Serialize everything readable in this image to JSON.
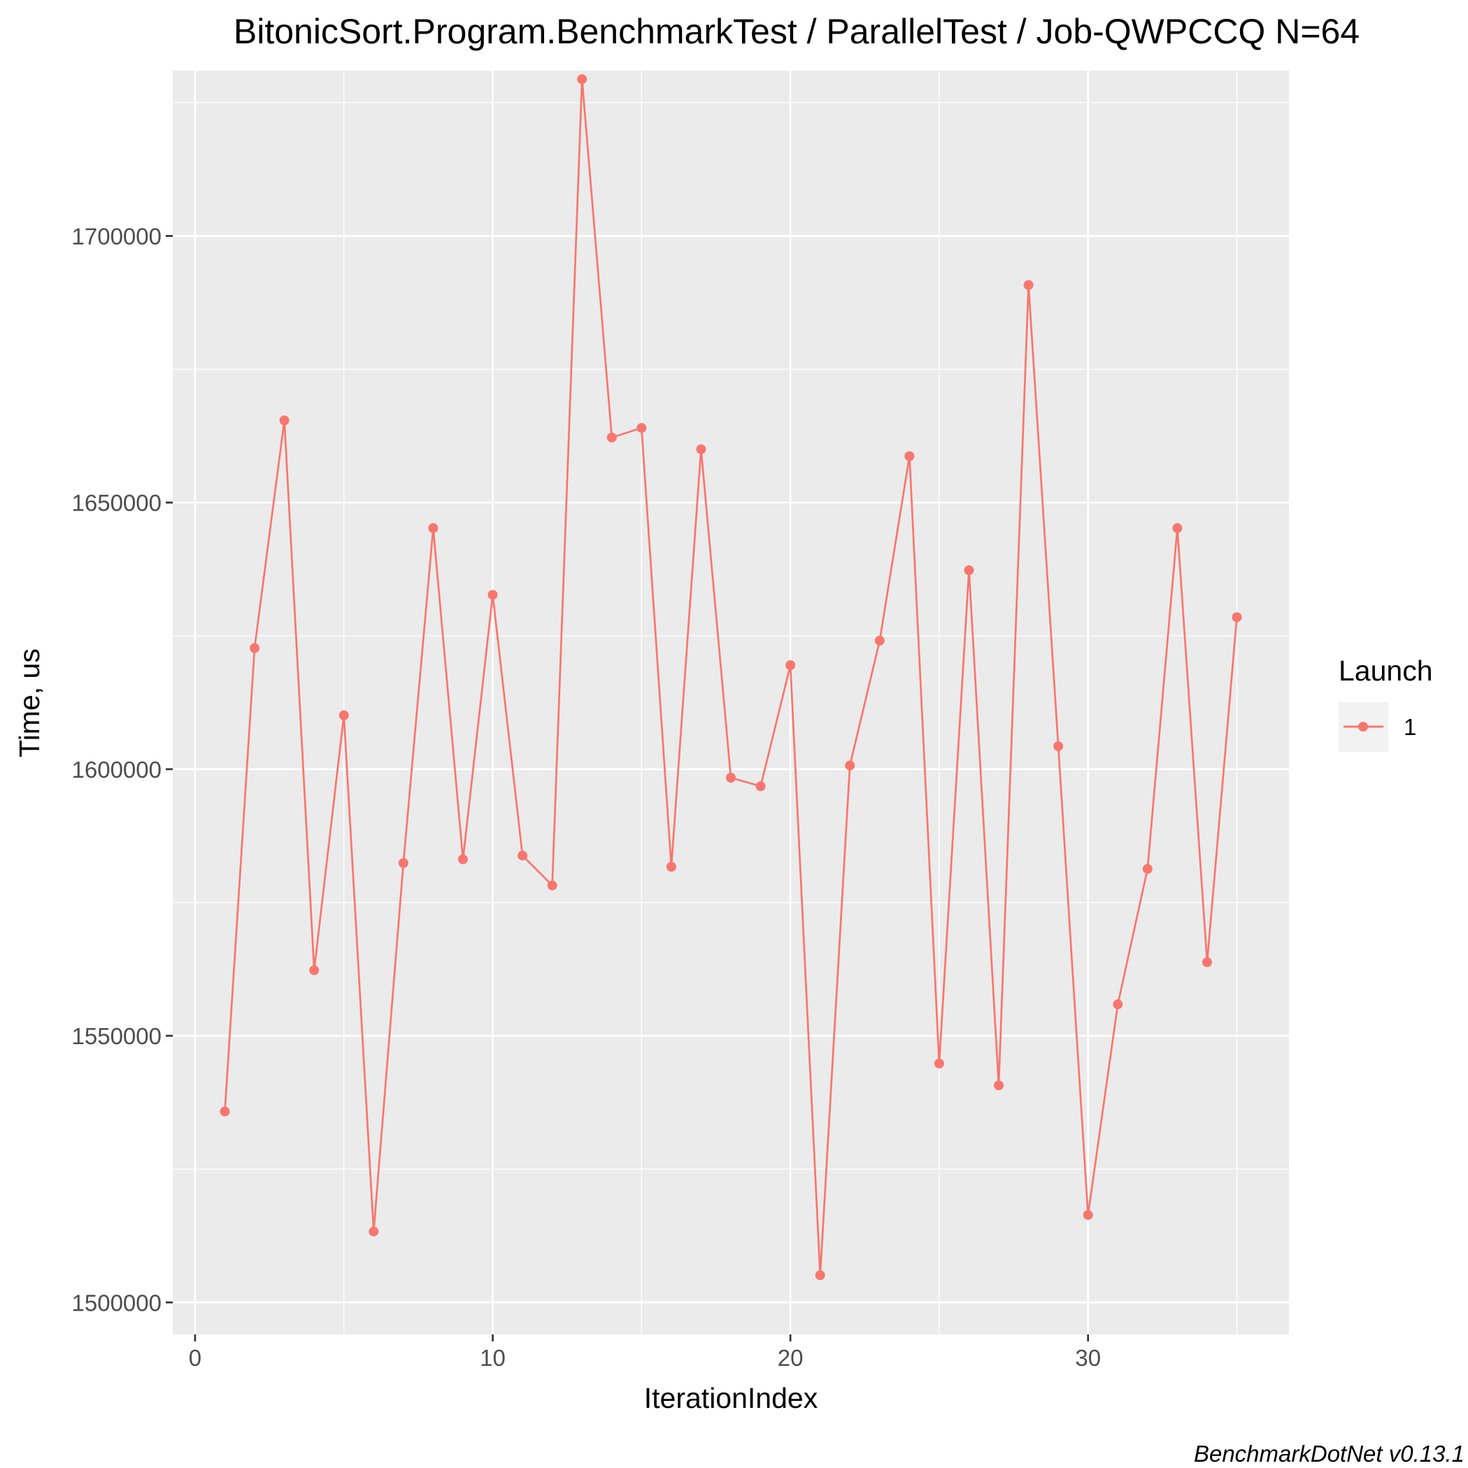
{
  "chart_data": {
    "type": "line",
    "title": "BitonicSort.Program.BenchmarkTest / ParallelTest / Job-QWPCCQ N=64",
    "xlabel": "IterationIndex",
    "ylabel": "Time, us",
    "xlim": [
      -0.75,
      36.75
    ],
    "ylim": [
      1494000,
      1731000
    ],
    "x_ticks": [
      0,
      10,
      20,
      30
    ],
    "x_tick_labels": [
      "0",
      "10",
      "20",
      "30"
    ],
    "y_ticks": [
      1500000,
      1550000,
      1600000,
      1650000,
      1700000
    ],
    "y_tick_labels": [
      "1500000",
      "1550000",
      "1600000",
      "1650000",
      "1700000"
    ],
    "grid": true,
    "legend": {
      "title": "Launch",
      "position": "right"
    },
    "series": [
      {
        "name": "1",
        "color": "#F8766D",
        "x": [
          1,
          2,
          3,
          4,
          5,
          6,
          7,
          8,
          9,
          10,
          11,
          12,
          13,
          14,
          15,
          16,
          17,
          18,
          19,
          20,
          21,
          22,
          23,
          24,
          25,
          26,
          27,
          28,
          29,
          30,
          31,
          32,
          33,
          34,
          35
        ],
        "values": [
          1535800,
          1622700,
          1665400,
          1562300,
          1610100,
          1513300,
          1582400,
          1645200,
          1583100,
          1632700,
          1583800,
          1578200,
          1729400,
          1662200,
          1664000,
          1581700,
          1660000,
          1598400,
          1596800,
          1619500,
          1505100,
          1600700,
          1624100,
          1658700,
          1544800,
          1637300,
          1540700,
          1690800,
          1604300,
          1516400,
          1555900,
          1581300,
          1645200,
          1563800,
          1628500
        ]
      }
    ],
    "caption": "BenchmarkDotNet v0.13.1"
  }
}
